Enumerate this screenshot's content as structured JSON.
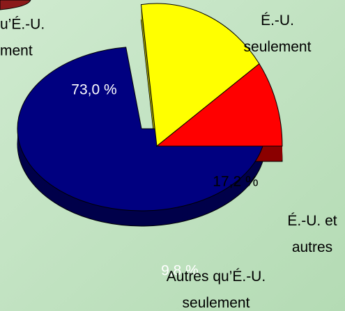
{
  "chart_data": {
    "type": "pie",
    "categories": [
      "É.-U. seulement",
      "É.-U. et autres",
      "Autres qu’É.-U. seulement"
    ],
    "values": [
      73.0,
      17.2,
      9.8
    ],
    "value_labels": [
      "73,0 %",
      "17,2 %",
      "9,8 %"
    ],
    "colors": [
      "#000080",
      "#ffff00",
      "#ff0000"
    ],
    "side_colors": [
      "#00004a",
      "#999900",
      "#8b0000"
    ],
    "exploded": [
      false,
      true,
      true
    ],
    "annotations": [
      "u’É.-U.",
      "ment"
    ]
  }
}
